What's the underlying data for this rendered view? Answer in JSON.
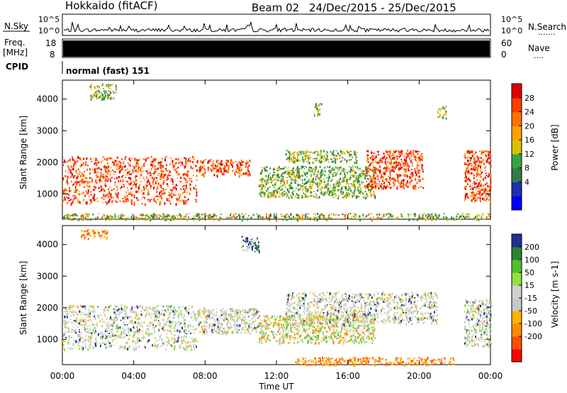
{
  "header": {
    "station": "Hokkaido (fitACF)",
    "beam": "Beam 02",
    "date_range": "24/Dec/2015 - 25/Dec/2015"
  },
  "noise_panel": {
    "left_label": "N.Sky",
    "right_label": "N.Search",
    "left_ticks": [
      "10^5",
      "10^0"
    ],
    "right_ticks": [
      "10^5",
      "10^0"
    ],
    "right_dots": "......."
  },
  "freq_panel": {
    "left_label_top": "Freq.",
    "left_label_bottom": "[MHz]",
    "right_label": "Nave",
    "left_ticks": [
      "18",
      "8"
    ],
    "right_ticks": [
      "60",
      "0"
    ],
    "right_dots": "....",
    "fill_color": "#000000"
  },
  "cpid_panel": {
    "label": "CPID",
    "text": "normal (fast) 151"
  },
  "chart_data": [
    {
      "type": "heatmap",
      "name": "power",
      "ylabel": "Slant Range [km]",
      "ylim": [
        200,
        4600
      ],
      "yticks": [
        1000,
        2000,
        3000,
        4000
      ],
      "xlim": [
        0,
        24
      ],
      "colorbar": {
        "label": "Power [dB]",
        "ticks": [
          "28",
          "24",
          "20",
          "16",
          "12",
          "8",
          "4"
        ],
        "colors": [
          "#0000ff",
          "#2030b0",
          "#2f7a4a",
          "#3aa040",
          "#d8c000",
          "#ffa000",
          "#ff7000",
          "#ff4000",
          "#e00000"
        ]
      },
      "regions": [
        {
          "t": [
            0.0,
            7.5
          ],
          "r": [
            700,
            2200
          ],
          "level": "high"
        },
        {
          "t": [
            7.5,
            10.5
          ],
          "r": [
            1600,
            2100
          ],
          "level": "high"
        },
        {
          "t": [
            11.0,
            17.5
          ],
          "r": [
            900,
            1900
          ],
          "level": "medium"
        },
        {
          "t": [
            12.5,
            16.5
          ],
          "r": [
            2000,
            2400
          ],
          "level": "medium"
        },
        {
          "t": [
            17.0,
            20.2
          ],
          "r": [
            1200,
            2400
          ],
          "level": "high"
        },
        {
          "t": [
            22.5,
            24.0
          ],
          "r": [
            800,
            2400
          ],
          "level": "high"
        },
        {
          "t": [
            0.0,
            24.0
          ],
          "r": [
            200,
            400
          ],
          "level": "low"
        },
        {
          "t": [
            1.5,
            3.0
          ],
          "r": [
            4000,
            4500
          ],
          "level": "medium"
        },
        {
          "t": [
            14.0,
            14.5
          ],
          "r": [
            3500,
            3900
          ],
          "level": "medium"
        },
        {
          "t": [
            21.0,
            21.5
          ],
          "r": [
            3400,
            3800
          ],
          "level": "medium"
        }
      ]
    },
    {
      "type": "heatmap",
      "name": "velocity",
      "ylabel": "Slant Range [km]",
      "ylim": [
        200,
        4600
      ],
      "yticks": [
        1000,
        2000,
        3000,
        4000
      ],
      "xlim": [
        0,
        24
      ],
      "xlabel": "Time UT",
      "xticks": [
        "00:00",
        "04:00",
        "08:00",
        "12:00",
        "16:00",
        "20:00",
        "00:00"
      ],
      "colorbar": {
        "label": "Velocity [m s-1]",
        "ticks": [
          "200",
          "100",
          "50",
          "15",
          "-15",
          "-50",
          "-100",
          "-200"
        ],
        "colors": [
          "#ff0000",
          "#ff5000",
          "#ff8c00",
          "#ffb000",
          "#c8c8c8",
          "#cfcfcf",
          "#90e040",
          "#50c030",
          "#2f8030",
          "#203090"
        ]
      },
      "regions": [
        {
          "t": [
            0.0,
            7.5
          ],
          "r": [
            700,
            2100
          ],
          "level": "gray"
        },
        {
          "t": [
            7.5,
            11.0
          ],
          "r": [
            1200,
            2000
          ],
          "level": "gray"
        },
        {
          "t": [
            11.0,
            17.5
          ],
          "r": [
            900,
            1800
          ],
          "level": "mixed"
        },
        {
          "t": [
            12.5,
            21.0
          ],
          "r": [
            1500,
            2500
          ],
          "level": "gray"
        },
        {
          "t": [
            22.5,
            24.0
          ],
          "r": [
            800,
            2300
          ],
          "level": "gray"
        },
        {
          "t": [
            13.0,
            22.0
          ],
          "r": [
            200,
            450
          ],
          "level": "orange"
        },
        {
          "t": [
            10.0,
            11.0
          ],
          "r": [
            3800,
            4300
          ],
          "level": "blue"
        },
        {
          "t": [
            1.0,
            2.5
          ],
          "r": [
            4200,
            4500
          ],
          "level": "orange"
        }
      ]
    }
  ]
}
